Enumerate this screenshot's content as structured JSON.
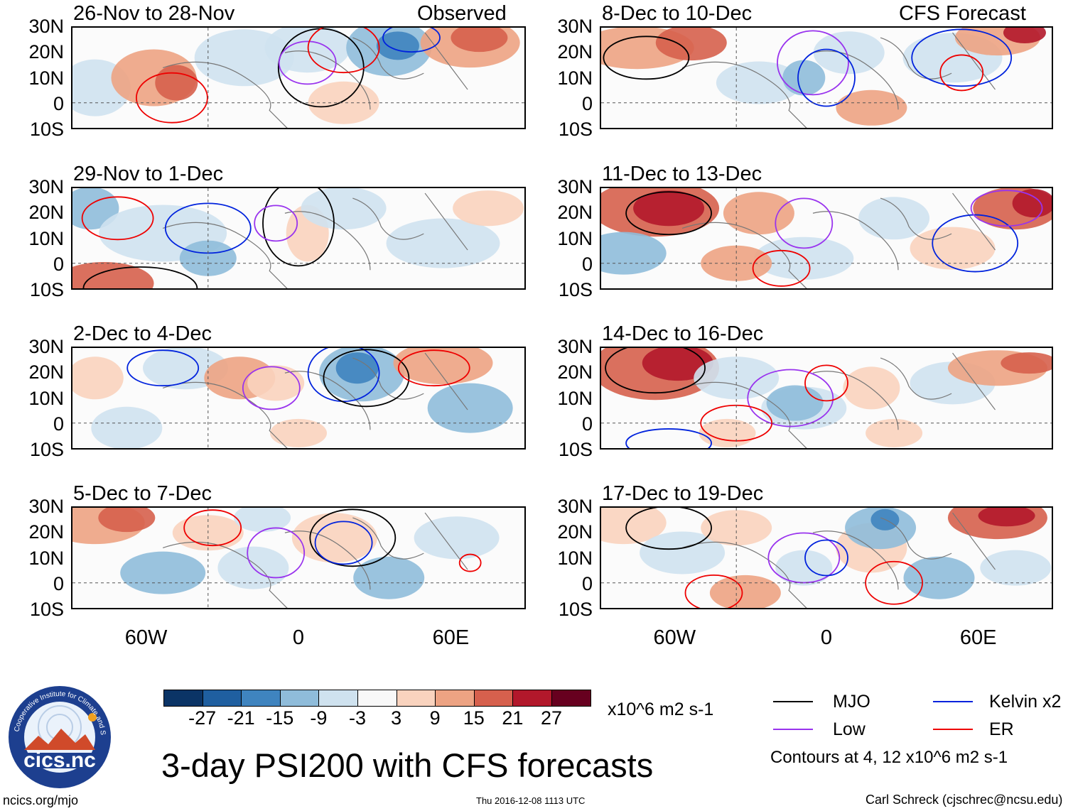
{
  "headers": {
    "left_title": "Observed",
    "right_title": "CFS Forecast"
  },
  "panels": [
    {
      "label": "26-Nov to 28-Nov"
    },
    {
      "label": "29-Nov to 1-Dec"
    },
    {
      "label": "2-Dec to 4-Dec"
    },
    {
      "label": "5-Dec to 7-Dec"
    },
    {
      "label": "8-Dec to 10-Dec"
    },
    {
      "label": "11-Dec to 13-Dec"
    },
    {
      "label": "14-Dec to 16-Dec"
    },
    {
      "label": "17-Dec to 19-Dec"
    }
  ],
  "axes": {
    "lat_labels": [
      "30N",
      "20N",
      "10N",
      "0",
      "10S"
    ],
    "lon_labels": [
      "60W",
      "0",
      "60E"
    ]
  },
  "colorbar": {
    "ticks": [
      "-27",
      "-21",
      "-15",
      "-9",
      "-3",
      "3",
      "9",
      "15",
      "21",
      "27"
    ],
    "colors": [
      "#0b3466",
      "#1f5fa0",
      "#3f84bf",
      "#8fbcda",
      "#cfe2ef",
      "#f8f8f8",
      "#f9d3be",
      "#eda383",
      "#d6604d",
      "#b2182b",
      "#67001f"
    ],
    "units": "x10^6 m2 s-1"
  },
  "legend": {
    "items": [
      {
        "label": "MJO",
        "color": "#000000"
      },
      {
        "label": "Kelvin x2",
        "color": "#0022dd"
      },
      {
        "label": "Low",
        "color": "#9933ee"
      },
      {
        "label": "ER",
        "color": "#ee0000"
      }
    ],
    "note": "Contours at 4, 12 x10^6 m2 s-1"
  },
  "main_title": "3-day PSI200 with CFS forecasts",
  "logo_text": "cics.nc",
  "logo_ring_text": "Cooperative Institute for Climate and Satellites",
  "footer": {
    "left": "ncics.org/mjo",
    "center": "Thu 2016-12-08 1113 UTC",
    "right": "Carl Schreck (cjschrec@ncsu.edu)"
  }
}
